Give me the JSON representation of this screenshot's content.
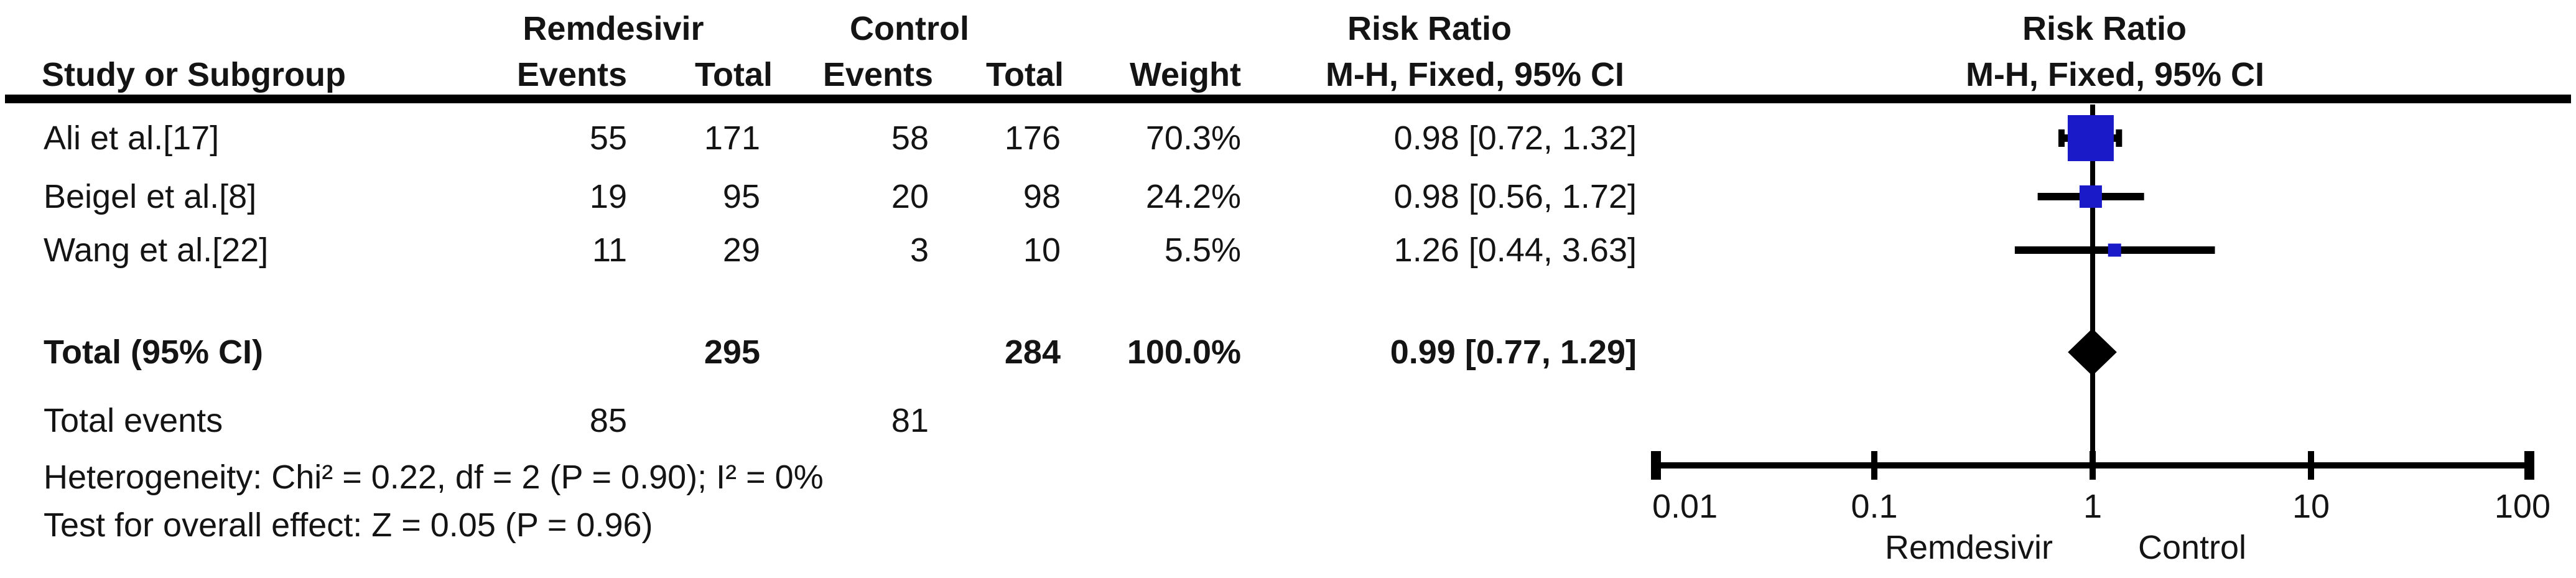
{
  "table": {
    "group_headers": {
      "remdesivir": "Remdesivir",
      "control": "Control",
      "risk_ratio": "Risk Ratio"
    },
    "plot_headers": {
      "risk_ratio": "Risk Ratio",
      "method": "M-H, Fixed, 95% CI"
    },
    "columns": {
      "study": "Study or Subgroup",
      "events1": "Events",
      "total1": "Total",
      "events2": "Events",
      "total2": "Total",
      "weight": "Weight",
      "method": "M-H, Fixed, 95% CI"
    },
    "rows": [
      {
        "study": "Ali et al.[17]",
        "events1": "55",
        "total1": "171",
        "events2": "58",
        "total2": "176",
        "weight": "70.3%",
        "rr_ci": "0.98 [0.72, 1.32]"
      },
      {
        "study": "Beigel et al.[8]",
        "events1": "19",
        "total1": "95",
        "events2": "20",
        "total2": "98",
        "weight": "24.2%",
        "rr_ci": "0.98 [0.56, 1.72]"
      },
      {
        "study": "Wang et al.[22]",
        "events1": "11",
        "total1": "29",
        "events2": "3",
        "total2": "10",
        "weight": "5.5%",
        "rr_ci": "1.26 [0.44, 3.63]"
      }
    ],
    "total_row": {
      "label": "Total (95% CI)",
      "total1": "295",
      "total2": "284",
      "weight": "100.0%",
      "rr_ci": "0.99 [0.77, 1.29]"
    },
    "total_events": {
      "label": "Total events",
      "events1": "85",
      "events2": "81"
    },
    "heterogeneity": "Heterogeneity: Chi² = 0.22, df = 2 (P = 0.90); I² = 0%",
    "overall_effect": "Test for overall effect: Z = 0.05 (P = 0.96)"
  },
  "chart_data": {
    "type": "forest",
    "effect_measure": "Risk Ratio",
    "method": "M-H, Fixed, 95% CI",
    "x_scale": "log10",
    "axis": {
      "min": 0.01,
      "max": 100,
      "ticks": [
        0.01,
        0.1,
        1,
        10,
        100
      ],
      "tick_labels": [
        "0.01",
        "0.1",
        "1",
        "10",
        "100"
      ],
      "null_line": 1,
      "left_label": "Remdesivir",
      "right_label": "Control"
    },
    "marker_color": "#1a1ac8",
    "line_color": "#000000",
    "studies": [
      {
        "name": "Ali et al.[17]",
        "rr": 0.98,
        "ci_low": 0.72,
        "ci_high": 1.32,
        "weight_pct": 70.3,
        "caps": true
      },
      {
        "name": "Beigel et al.[8]",
        "rr": 0.98,
        "ci_low": 0.56,
        "ci_high": 1.72,
        "weight_pct": 24.2,
        "caps": false
      },
      {
        "name": "Wang et al.[22]",
        "rr": 1.26,
        "ci_low": 0.44,
        "ci_high": 3.63,
        "weight_pct": 5.5,
        "caps": false
      }
    ],
    "total": {
      "label": "Total (95% CI)",
      "rr": 0.99,
      "ci_low": 0.77,
      "ci_high": 1.29,
      "weight_pct": 100.0
    }
  }
}
